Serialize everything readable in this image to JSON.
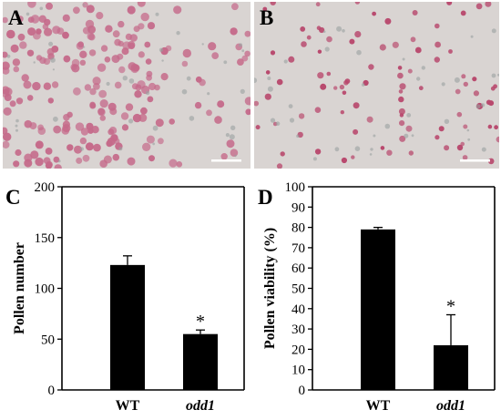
{
  "panels": {
    "a": {
      "letter": "A",
      "kind": "micrograph",
      "description_colors": {
        "background": "#d9d4d2",
        "pollen": "#c56a8a"
      }
    },
    "b": {
      "letter": "B",
      "kind": "micrograph",
      "description_colors": {
        "background": "#d9d4d2",
        "pollen": "#b8476c"
      }
    },
    "c": {
      "letter": "C"
    },
    "d": {
      "letter": "D"
    }
  },
  "colors": {
    "bar": "#000000",
    "scalebar": "#ffffff",
    "axis": "#000000"
  },
  "chart_data": [
    {
      "type": "bar",
      "panel": "C",
      "categories": [
        "WT",
        "odd1"
      ],
      "category_italic": [
        false,
        true
      ],
      "values": [
        123,
        55
      ],
      "errors": [
        9,
        4
      ],
      "significance": [
        "",
        "*"
      ],
      "title": "",
      "xlabel": "",
      "ylabel": "Pollen number",
      "ylim": [
        0,
        200
      ],
      "yticks": [
        0,
        50,
        100,
        150,
        200
      ],
      "grid": false
    },
    {
      "type": "bar",
      "panel": "D",
      "categories": [
        "WT",
        "odd1"
      ],
      "category_italic": [
        false,
        true
      ],
      "values": [
        79,
        22
      ],
      "errors": [
        1,
        15
      ],
      "significance": [
        "",
        "*"
      ],
      "title": "",
      "xlabel": "",
      "ylabel": "Pollen viability (%)",
      "ylim": [
        0,
        100
      ],
      "yticks": [
        0,
        10,
        20,
        30,
        40,
        50,
        60,
        70,
        80,
        90,
        100
      ],
      "grid": false
    }
  ]
}
